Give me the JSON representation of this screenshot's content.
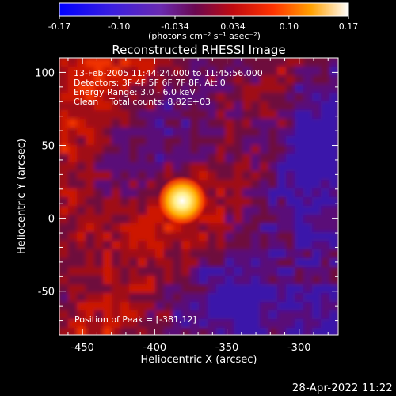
{
  "chart_data": {
    "type": "heatmap",
    "title": "Reconstructed RHESSI Image",
    "xlabel": "Heliocentric X (arcsec)",
    "ylabel": "Heliocentric Y (arcsec)",
    "xlim": [
      -466,
      -273
    ],
    "ylim": [
      -80,
      110
    ],
    "x_ticks": [
      -450,
      -400,
      -350,
      -300
    ],
    "y_ticks": [
      -50,
      0,
      50,
      100
    ],
    "x_tick_labels": [
      "-450",
      "-400",
      "-350",
      "-300"
    ],
    "y_tick_labels": [
      "-50",
      "0",
      "50",
      "100"
    ],
    "colorbar": {
      "min": -0.17,
      "max": 0.17,
      "ticks": [
        -0.17,
        -0.1,
        -0.034,
        0.034,
        0.1,
        0.17
      ],
      "tick_labels": [
        "-0.17",
        "-0.10",
        "-0.034",
        "0.034",
        "0.10",
        "0.17"
      ],
      "units": "(photons cm⁻² s⁻¹ asec⁻²)",
      "colormap": [
        "#0000ff",
        "#6a2ab0",
        "#7a0a3c",
        "#e01000",
        "#ff8800",
        "#ffffff"
      ]
    },
    "annotations": [
      "13-Feb-2005 11:44:24.000 to 11:45:56.000",
      "Detectors: 3F 4F 5F 6F 7F 8F, Att 0",
      "Energy Range: 3.0 - 6.0 keV",
      "Clean    Total counts: 8.82E+03"
    ],
    "peak_label": "Position of Peak = [-381,12]",
    "peak": {
      "x": -381,
      "y": 12,
      "value": 0.17
    }
  },
  "footer": {
    "timestamp": "28-Apr-2022 11:22"
  }
}
